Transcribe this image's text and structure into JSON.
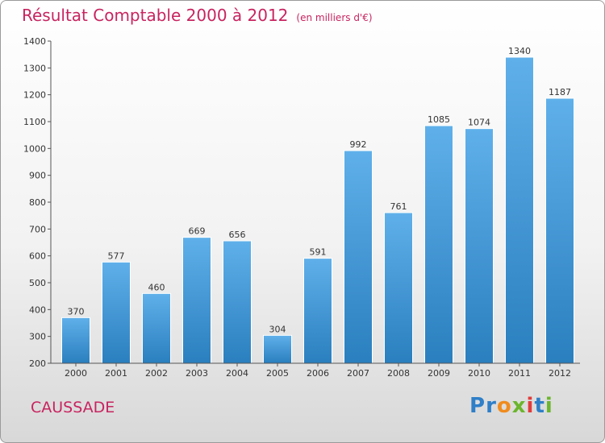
{
  "header": {
    "title": "Résultat Comptable 2000 à 2012",
    "unit": "(en milliers d'€)"
  },
  "footer": {
    "city": "CAUSSADE",
    "logo_letters": [
      {
        "ch": "P",
        "color": "#2e7fc8"
      },
      {
        "ch": "r",
        "color": "#2e7fc8"
      },
      {
        "ch": "o",
        "color": "#f08c1e"
      },
      {
        "ch": "x",
        "color": "#6cb52d"
      },
      {
        "ch": "i",
        "color": "#e23b3b"
      },
      {
        "ch": "t",
        "color": "#2e7fc8"
      },
      {
        "ch": "i",
        "color": "#6cb52d"
      }
    ]
  },
  "colors": {
    "title": "#c8245f",
    "bar_top": "#5fb0ea",
    "bar_bottom": "#2a7fbe",
    "axis": "#555555"
  },
  "chart_data": {
    "type": "bar",
    "title": "Résultat Comptable 2000 à 2012",
    "subtitle": "(en milliers d'€)",
    "categories": [
      "2000",
      "2001",
      "2002",
      "2003",
      "2004",
      "2005",
      "2006",
      "2007",
      "2008",
      "2009",
      "2010",
      "2011",
      "2012"
    ],
    "values": [
      370,
      577,
      460,
      669,
      656,
      304,
      591,
      992,
      761,
      1085,
      1074,
      1340,
      1187
    ],
    "ylim": [
      200,
      1400
    ],
    "yticks": [
      200,
      300,
      400,
      500,
      600,
      700,
      800,
      900,
      1000,
      1100,
      1200,
      1300,
      1400
    ],
    "grid": false,
    "legend": "none"
  }
}
